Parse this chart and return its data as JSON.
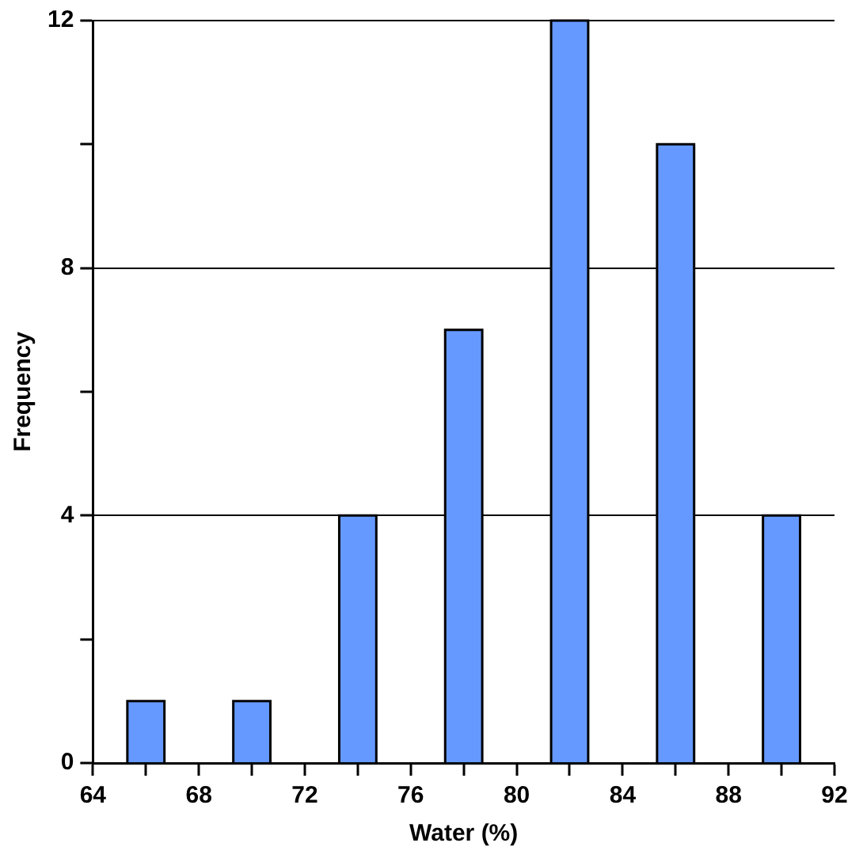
{
  "chart_data": {
    "type": "histogram",
    "xlabel": "Water (%)",
    "ylabel": "Frequency",
    "bins": [
      64,
      68,
      72,
      76,
      80,
      84,
      88,
      92
    ],
    "values": [
      1,
      1,
      4,
      7,
      12,
      10,
      4
    ],
    "color": "#6699ff",
    "xlim": [
      64,
      92
    ],
    "xticks": [
      64,
      {
        "value": 66,
        "label": null
      },
      68,
      {
        "value": 70,
        "label": null
      },
      72,
      {
        "value": 74,
        "label": null
      },
      76,
      {
        "value": 78,
        "label": null
      },
      80,
      {
        "value": 82,
        "label": null
      },
      84,
      {
        "value": 86,
        "label": null
      },
      88,
      {
        "value": 90,
        "label": null
      },
      92
    ],
    "ylim": [
      0,
      12
    ],
    "yticks": [
      0,
      {
        "value": 2,
        "label": null
      },
      4,
      {
        "value": 6,
        "label": null
      },
      8,
      {
        "value": 10,
        "label": null
      },
      12
    ],
    "grid": "y",
    "legend": false
  }
}
